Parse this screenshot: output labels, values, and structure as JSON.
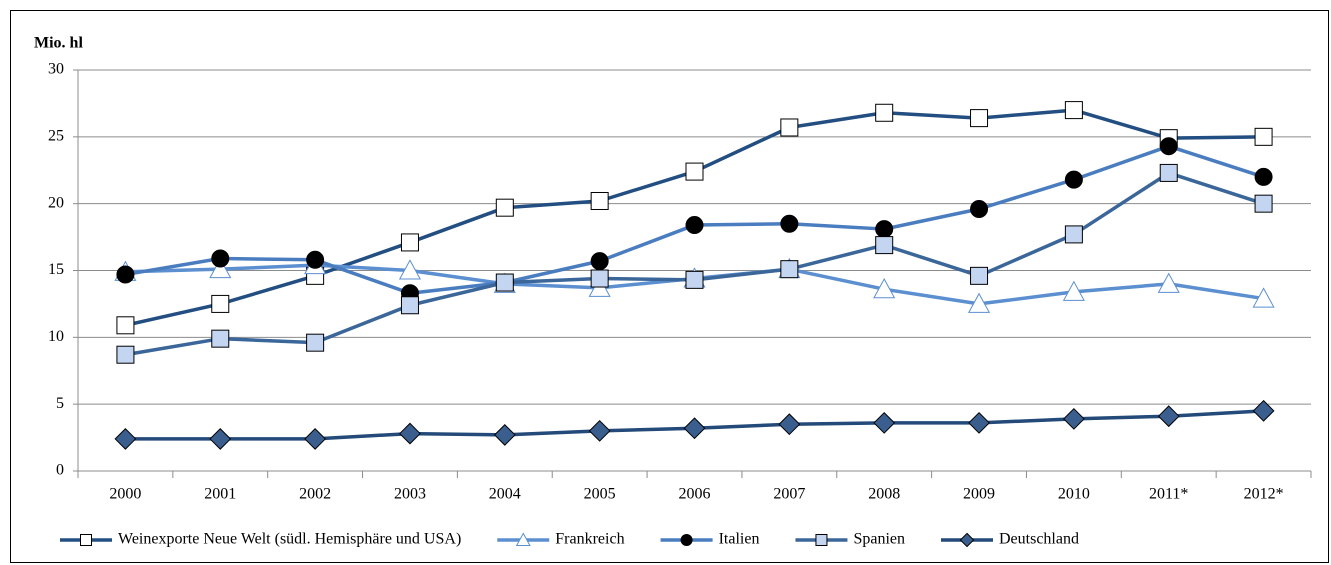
{
  "chart_data": {
    "type": "line",
    "y_label": "Mio. hl",
    "categories": [
      "2000",
      "2001",
      "2002",
      "2003",
      "2004",
      "2005",
      "2006",
      "2007",
      "2008",
      "2009",
      "2010",
      "2011*",
      "2012*"
    ],
    "ylim": [
      0,
      30
    ],
    "yticks": [
      0,
      5,
      10,
      15,
      20,
      25,
      30
    ],
    "grid": true,
    "legend": "bottom",
    "series": [
      {
        "name": "Weinexporte Neue Welt (südl. Hemisphäre und USA)",
        "color": "#234e82",
        "marker": "square",
        "marker_fill": "#ffffff",
        "values": [
          10.9,
          12.5,
          14.6,
          17.1,
          19.7,
          20.2,
          22.4,
          25.7,
          26.8,
          26.4,
          27.0,
          24.9,
          25.0
        ]
      },
      {
        "name": "Frankreich",
        "color": "#5b8fd0",
        "marker": "triangle",
        "marker_fill": "#ffffff",
        "values": [
          14.9,
          15.1,
          15.4,
          15.0,
          14.0,
          13.7,
          14.4,
          15.1,
          13.6,
          12.5,
          13.4,
          14.0,
          12.9
        ]
      },
      {
        "name": "Italien",
        "color": "#4a7dbf",
        "marker": "circle",
        "marker_fill": "#000000",
        "values": [
          14.7,
          15.9,
          15.8,
          13.3,
          14.1,
          15.7,
          18.4,
          18.5,
          18.1,
          19.6,
          21.8,
          24.3,
          22.0
        ]
      },
      {
        "name": "Spanien",
        "color": "#3b6699",
        "marker": "square",
        "marker_fill": "#c3d5f0",
        "values": [
          8.7,
          9.9,
          9.6,
          12.4,
          14.1,
          14.4,
          14.3,
          15.1,
          16.9,
          14.6,
          17.7,
          22.3,
          20.0
        ]
      },
      {
        "name": "Deutschland",
        "color": "#244a7a",
        "marker": "diamond",
        "marker_fill": "#3a5f8e",
        "values": [
          2.4,
          2.4,
          2.4,
          2.8,
          2.7,
          3.0,
          3.2,
          3.5,
          3.6,
          3.6,
          3.9,
          4.1,
          4.5
        ]
      }
    ]
  }
}
